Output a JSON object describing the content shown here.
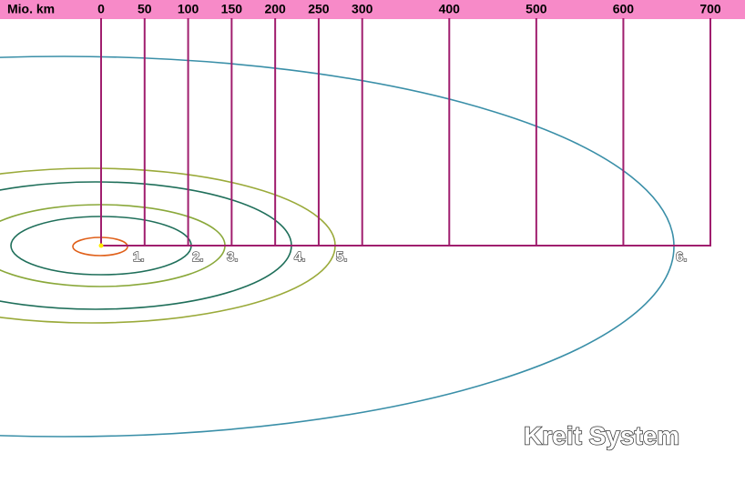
{
  "scale": {
    "label": "Mio. km",
    "ticks": [
      0,
      50,
      100,
      150,
      200,
      250,
      300,
      400,
      500,
      600,
      700
    ]
  },
  "orbits": [
    "1.",
    "2.",
    "3.",
    "4.",
    "5.",
    "6."
  ],
  "title": "Kreit System"
}
